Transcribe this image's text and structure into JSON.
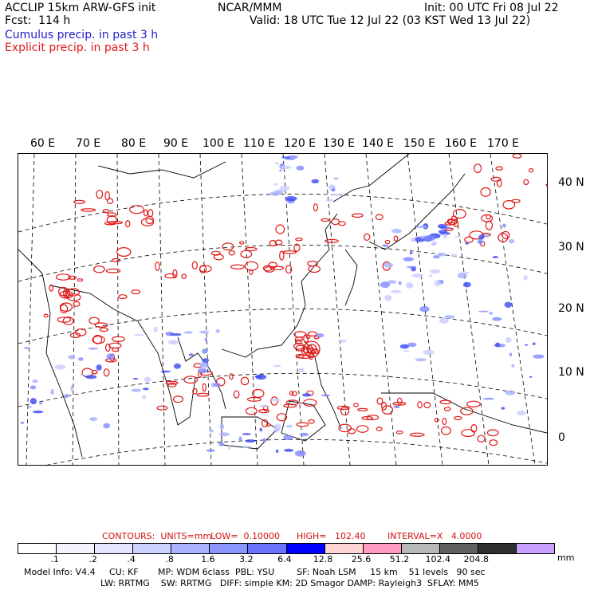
{
  "header": {
    "title": "ACCLIP 15km ARW-GFS init",
    "forecast": "Fcst:  114 h",
    "center": "NCAR/MMM",
    "init": "Init: 00 UTC Fri 08 Jul 22",
    "valid": "Valid: 18 UTC Tue 12 Jul 22 (03 KST Wed 13 Jul 22)",
    "cumulus_legend": "Cumulus precip. in past 3 h",
    "explicit_legend": "Explicit precip. in past 3 h",
    "cumulus_color": "#2020c8",
    "explicit_color": "#e01818"
  },
  "map": {
    "lon_labels": [
      "60 E",
      "70 E",
      "80 E",
      "90 E",
      "100 E",
      "110 E",
      "120 E",
      "130 E",
      "140 E",
      "150 E",
      "160 E",
      "170 E"
    ],
    "lat_labels": [
      "40 N",
      "30 N",
      "20 N",
      "10 N",
      "0"
    ],
    "coastline_color": "#000000",
    "grid_style": "dashed"
  },
  "contours": {
    "units_label": "CONTOURS:  UNITS=mm",
    "low_label": "LOW=  0.10000",
    "high_label": "HIGH=   102.40",
    "interval_label": "INTERVAL=X   4.0000"
  },
  "colorbar": {
    "colors": [
      "#ffffff",
      "#f4f4ff",
      "#e4e6ff",
      "#ccd2ff",
      "#aab3ff",
      "#8c96ff",
      "#6a74ff",
      "#0000ff",
      "#ffd6d6",
      "#ff9ac2",
      "#b8b8b8",
      "#606060",
      "#303030",
      "#c8a0ff"
    ],
    "ticks": [
      ".1",
      ".2",
      ".4",
      ".8",
      "1.6",
      "3.2",
      "6.4",
      "12.8",
      "25.6",
      "51.2",
      "102.4",
      "204.8"
    ],
    "unit": "mm"
  },
  "footer": {
    "line1": "Model Info: V4.4     CU: KF       MP: WDM 6class  PBL: YSU        SF: Noah LSM     15 km    51 levels   90 sec",
    "line2": "LW: RRTMG    SW: RRTMG   DIFF: simple KM: 2D Smagor DAMP: Rayleigh3  SFLAY: MM5"
  }
}
